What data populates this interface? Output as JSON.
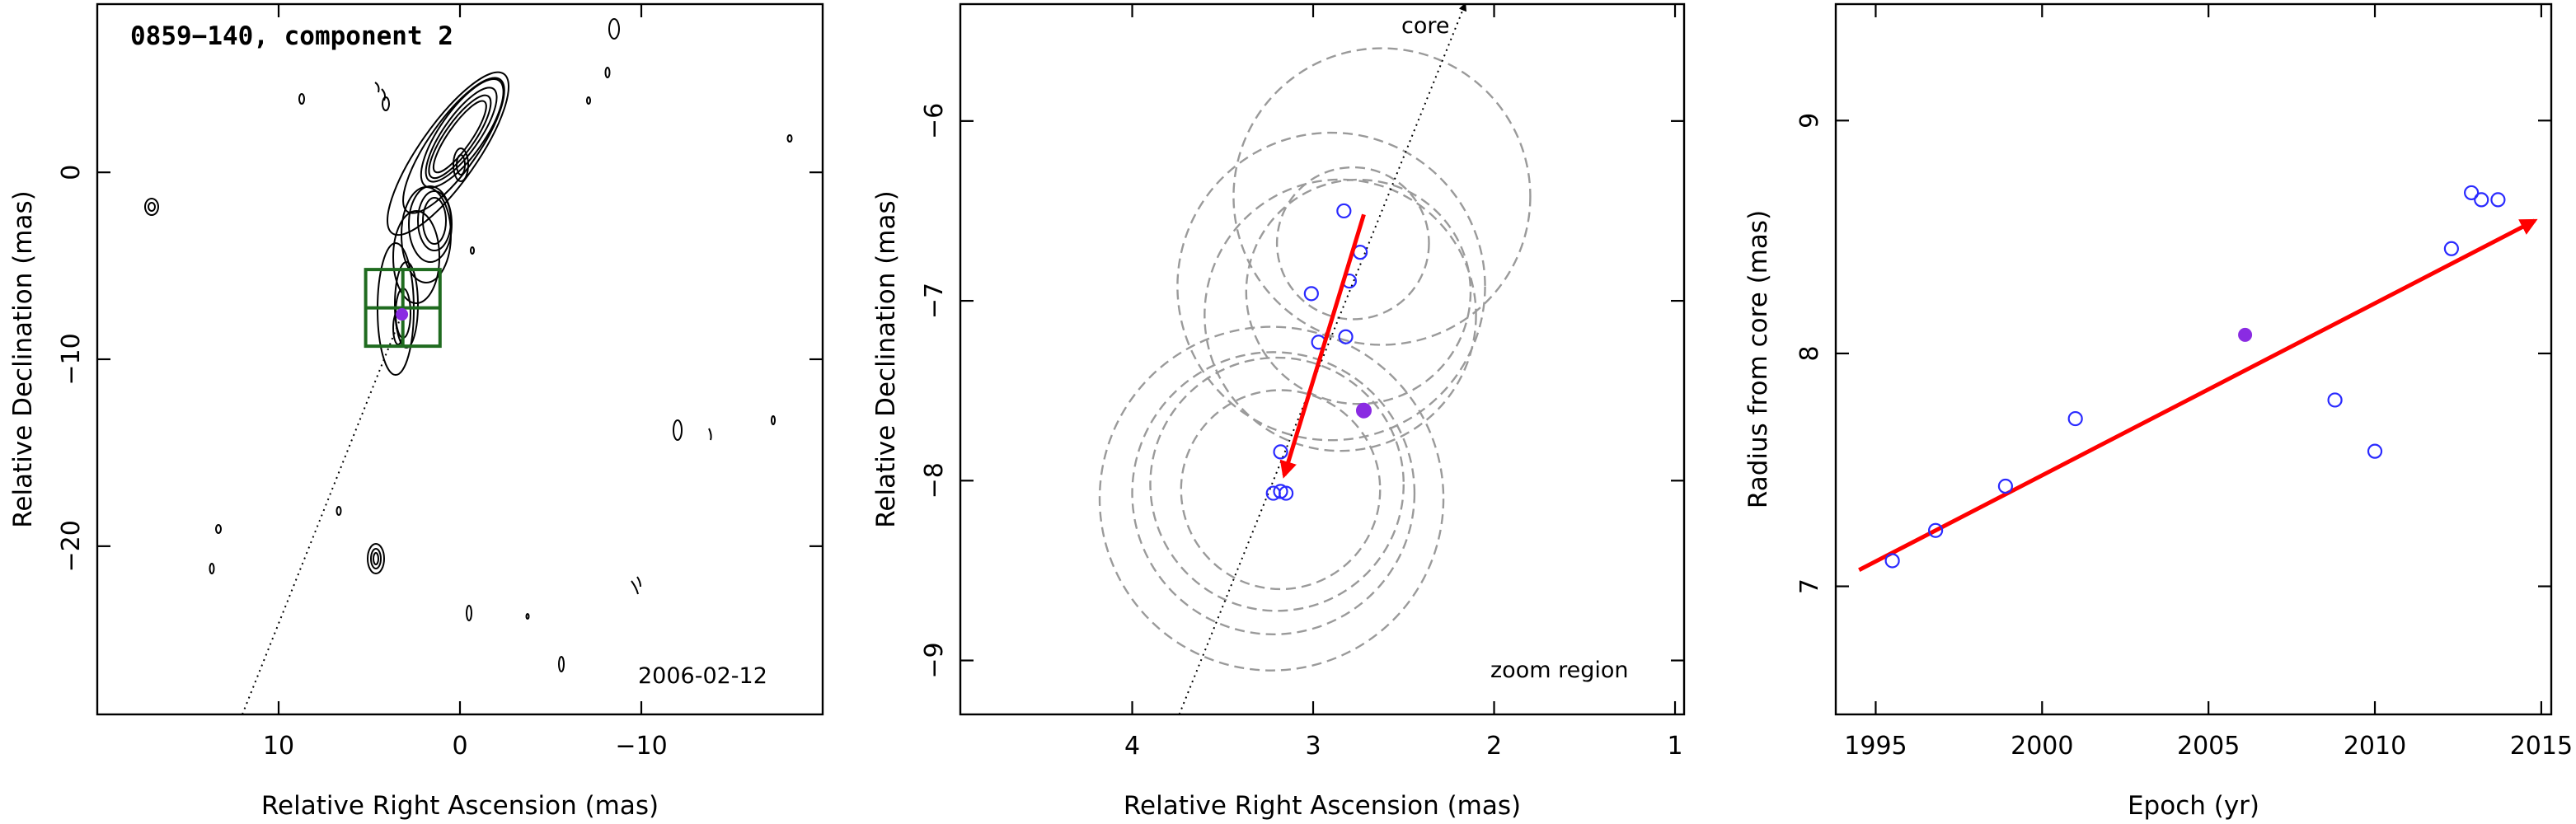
{
  "chart_data": [
    {
      "type": "contour",
      "title": "0859−140, component 2",
      "epoch_label": "2006-02-12",
      "xlabel": "Relative Right Ascension (mas)",
      "ylabel": "Relative Declination (mas)",
      "xlim": [
        20,
        -20
      ],
      "ylim": [
        -29,
        9
      ],
      "xticks": [
        10,
        0,
        -10
      ],
      "xtick_labels": [
        "10",
        "0",
        "−10"
      ],
      "yticks": [
        0,
        -10,
        -20
      ],
      "ytick_labels": [
        "0",
        "−10",
        "−20"
      ],
      "marker": {
        "x": 3.2,
        "y": -7.6
      },
      "box": {
        "x": [
          5.2,
          1.1
        ],
        "y": [
          -5.2,
          -9.3
        ]
      }
    },
    {
      "type": "scatter",
      "annotation": "zoom region",
      "direction_label": "core",
      "xlabel": "Relative Right Ascension (mas)",
      "ylabel": "Relative Declination (mas)",
      "xlim": [
        4.95,
        0.95
      ],
      "ylim": [
        -9.3,
        -5.35
      ],
      "xticks": [
        4,
        3,
        2,
        1
      ],
      "xtick_labels": [
        "4",
        "3",
        "2",
        "1"
      ],
      "yticks": [
        -6,
        -7,
        -8,
        -9
      ],
      "ytick_labels": [
        "−6",
        "−7",
        "−8",
        "−9"
      ],
      "points": [
        {
          "x": 2.83,
          "y": -6.5
        },
        {
          "x": 2.74,
          "y": -6.73
        },
        {
          "x": 2.8,
          "y": -6.89
        },
        {
          "x": 3.01,
          "y": -6.96
        },
        {
          "x": 2.97,
          "y": -7.23
        },
        {
          "x": 2.82,
          "y": -7.2
        },
        {
          "x": 3.18,
          "y": -7.84
        },
        {
          "x": 3.22,
          "y": -8.07
        },
        {
          "x": 3.18,
          "y": -8.06
        },
        {
          "x": 3.15,
          "y": -8.07
        }
      ],
      "highlight_point": {
        "x": 2.72,
        "y": -7.61
      },
      "circles": [
        {
          "x": 2.62,
          "y": -6.42,
          "r": 0.82
        },
        {
          "x": 2.78,
          "y": -6.68,
          "r": 0.42
        },
        {
          "x": 2.75,
          "y": -6.95,
          "r": 0.62
        },
        {
          "x": 2.85,
          "y": -7.08,
          "r": 0.75
        },
        {
          "x": 2.9,
          "y": -6.92,
          "r": 0.85
        },
        {
          "x": 3.22,
          "y": -8.07,
          "r": 0.78
        },
        {
          "x": 3.2,
          "y": -8.02,
          "r": 0.7
        },
        {
          "x": 3.23,
          "y": -8.1,
          "r": 0.95
        },
        {
          "x": 3.18,
          "y": -8.05,
          "r": 0.55
        }
      ],
      "motion_vector": {
        "x0": 2.72,
        "y0": -6.52,
        "x1": 3.16,
        "y1": -7.97
      },
      "core_direction": {
        "x0": 3.74,
        "y0": -9.3,
        "x1": 2.16,
        "y1": -5.35
      }
    },
    {
      "type": "scatter",
      "xlabel": "Epoch (yr)",
      "ylabel": "Radius from core (mas)",
      "xlim": [
        1993.8,
        2015.3
      ],
      "ylim": [
        6.45,
        9.5
      ],
      "xticks": [
        1995,
        2000,
        2005,
        2010,
        2015
      ],
      "xtick_labels": [
        "1995",
        "2000",
        "2005",
        "2010",
        "2015"
      ],
      "yticks": [
        7,
        8,
        9
      ],
      "ytick_labels": [
        "7",
        "8",
        "9"
      ],
      "points": [
        {
          "x": 1995.5,
          "y": 7.11
        },
        {
          "x": 1996.8,
          "y": 7.24
        },
        {
          "x": 1998.9,
          "y": 7.43
        },
        {
          "x": 2001.0,
          "y": 7.72
        },
        {
          "x": 2008.8,
          "y": 7.8
        },
        {
          "x": 2010.0,
          "y": 7.58
        },
        {
          "x": 2012.3,
          "y": 8.45
        },
        {
          "x": 2012.9,
          "y": 8.69
        },
        {
          "x": 2013.2,
          "y": 8.66
        },
        {
          "x": 2013.7,
          "y": 8.66
        }
      ],
      "highlight_point": {
        "x": 2006.1,
        "y": 8.08
      },
      "trend_line": {
        "x0": 1994.5,
        "y0": 7.07,
        "x1": 2014.8,
        "y1": 8.57
      }
    }
  ]
}
